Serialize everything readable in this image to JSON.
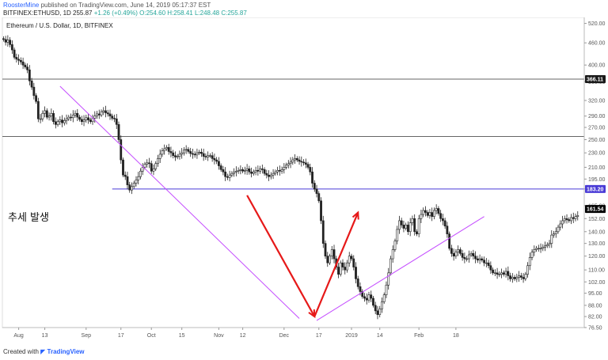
{
  "header": {
    "author": "RoosterMine",
    "published": "published on TradingView.com, June 14, 2019 05:17:37 EST",
    "symbol": "BITFINEX:ETHUSD, 1D",
    "last": "255.87",
    "change": "+1.26 (+0.49%)",
    "open": "O:254.60",
    "high": "H:258.41",
    "low": "L:248.48",
    "close": "C:255.87"
  },
  "footer": {
    "created_with": "Created with",
    "brand": "TradingView"
  },
  "chart_data": {
    "type": "candlestick",
    "title": "Ethereum / U.S. Dollar, 1D, BITFINEX",
    "annotation": "추세 발생",
    "y_scale": "log",
    "ylim": [
      76.5,
      540
    ],
    "y_ticks": [
      520.0,
      460.0,
      400.0,
      360.0,
      320.0,
      290.0,
      270.0,
      250.0,
      230.0,
      210.0,
      195.0,
      183.2,
      165.0,
      152.0,
      140.0,
      130.0,
      120.0,
      110.0,
      102.0,
      95.0,
      88.0,
      82.0,
      76.5
    ],
    "x_labels": [
      "Aug",
      "13",
      "Sep",
      "17",
      "Oct",
      "15",
      "Nov",
      "12",
      "Dec",
      "17",
      "2019",
      "14",
      "Feb",
      "18"
    ],
    "x_label_dates": [
      "2018-08-01",
      "2018-08-13",
      "2018-09-01",
      "2018-09-17",
      "2018-10-01",
      "2018-10-15",
      "2018-11-01",
      "2018-11-12",
      "2018-12-01",
      "2018-12-17",
      "2019-01-01",
      "2019-01-14",
      "2019-02-01",
      "2019-02-18"
    ],
    "price_badges": [
      {
        "value": "366.11",
        "color": "#1a1a1a"
      },
      {
        "value": "183.20",
        "color": "#4a3bd6"
      },
      {
        "value": "161.54",
        "color": "#000000"
      }
    ],
    "horizontal_levels": [
      {
        "price": 366.11,
        "color": "#666666"
      },
      {
        "price": 255.0,
        "color": "#666666"
      },
      {
        "price": 183.2,
        "color": "#4a3bd6",
        "from_date": "2018-09-13"
      }
    ],
    "trendlines": [
      {
        "color": "#c44cff",
        "points": [
          [
            "2018-08-20",
            350
          ],
          [
            "2018-12-08",
            81
          ]
        ]
      },
      {
        "color": "#c44cff",
        "points": [
          [
            "2018-12-16",
            80
          ],
          [
            "2019-03-03",
            154
          ]
        ]
      },
      {
        "color": "#e61919",
        "points": [
          [
            "2018-11-14",
            176
          ],
          [
            "2018-12-15",
            82
          ]
        ],
        "arrow": true
      },
      {
        "color": "#e61919",
        "points": [
          [
            "2018-12-15",
            82
          ],
          [
            "2019-01-04",
            158
          ]
        ],
        "arrow": true
      }
    ],
    "closes": {
      "start_date": "2018-07-25",
      "values": [
        470,
        462,
        468,
        455,
        440,
        420,
        415,
        412,
        408,
        400,
        395,
        388,
        362,
        348,
        330,
        318,
        285,
        285,
        295,
        300,
        288,
        290,
        295,
        280,
        275,
        280,
        283,
        278,
        282,
        285,
        288,
        287,
        292,
        295,
        288,
        284,
        280,
        283,
        287,
        283,
        280,
        286,
        290,
        294,
        292,
        298,
        300,
        296,
        294,
        290,
        286,
        285,
        275,
        250,
        220,
        200,
        198,
        188,
        182,
        186,
        190,
        194,
        198,
        205,
        210,
        214,
        216,
        215,
        205,
        208,
        215,
        222,
        228,
        233,
        236,
        238,
        232,
        230,
        226,
        224,
        225,
        228,
        230,
        234,
        235,
        232,
        229,
        228,
        227,
        230,
        231,
        229,
        225,
        224,
        226,
        226,
        222,
        220,
        218,
        212,
        207,
        204,
        198,
        197,
        200,
        202,
        204,
        205,
        206,
        207,
        205,
        206,
        208,
        204,
        202,
        204,
        206,
        205,
        208,
        207,
        202,
        200,
        198,
        200,
        202,
        204,
        206,
        205,
        207,
        210,
        213,
        215,
        217,
        220,
        222,
        220,
        218,
        217,
        216,
        214,
        210,
        204,
        190,
        183,
        178,
        170,
        150,
        130,
        120,
        115,
        120,
        125,
        118,
        112,
        107,
        115,
        112,
        110,
        115,
        120,
        118,
        112,
        104,
        99,
        96,
        93,
        92,
        91,
        94,
        92,
        88,
        85,
        83,
        86,
        90,
        94,
        100,
        108,
        118,
        125,
        132,
        142,
        150,
        146,
        143,
        146,
        140,
        148,
        152,
        140,
        138,
        152,
        156,
        160,
        158,
        155,
        158,
        154,
        160,
        162,
        157,
        152,
        150,
        145,
        138,
        126,
        122,
        120,
        123,
        125,
        122,
        119,
        118,
        118,
        121,
        122,
        120,
        118,
        117,
        118,
        117,
        115,
        115,
        113,
        110,
        108,
        108,
        107,
        107,
        108,
        107,
        109,
        106,
        104,
        105,
        104,
        105,
        106,
        105,
        104,
        107,
        113,
        119,
        123,
        125,
        126,
        126,
        126,
        127,
        128,
        129,
        130,
        137,
        138,
        140,
        144,
        147,
        150,
        152,
        151,
        150,
        153,
        152,
        154,
        155
      ]
    }
  }
}
